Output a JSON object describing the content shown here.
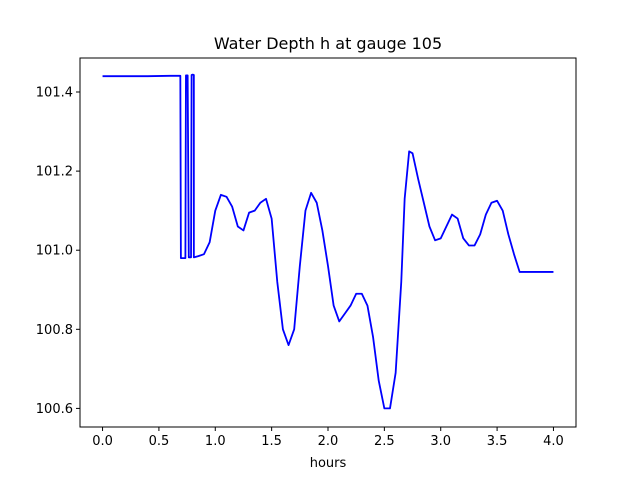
{
  "chart_data": {
    "type": "line",
    "title": "Water Depth h at gauge 105",
    "xlabel": "hours",
    "ylabel": "",
    "xlim": [
      -0.2,
      4.2
    ],
    "ylim": [
      100.553,
      101.486
    ],
    "grid": false,
    "xticks": [
      0.0,
      0.5,
      1.0,
      1.5,
      2.0,
      2.5,
      3.0,
      3.5,
      4.0
    ],
    "xtick_labels": [
      "0.0",
      "0.5",
      "1.0",
      "1.5",
      "2.0",
      "2.5",
      "3.0",
      "3.5",
      "4.0"
    ],
    "yticks": [
      100.6,
      100.8,
      101.0,
      101.2,
      101.4
    ],
    "ytick_labels": [
      "100.6",
      "100.8",
      "101.0",
      "101.2",
      "101.4"
    ],
    "series": [
      {
        "color": "#0000ff",
        "x": [
          0.0,
          0.2,
          0.4,
          0.6,
          0.69,
          0.695,
          0.72,
          0.735,
          0.74,
          0.755,
          0.765,
          0.77,
          0.785,
          0.79,
          0.8,
          0.81,
          0.81,
          0.85,
          0.9,
          0.95,
          1.0,
          1.05,
          1.1,
          1.15,
          1.2,
          1.25,
          1.3,
          1.35,
          1.4,
          1.45,
          1.5,
          1.55,
          1.6,
          1.65,
          1.7,
          1.75,
          1.8,
          1.85,
          1.9,
          1.95,
          2.0,
          2.05,
          2.1,
          2.15,
          2.2,
          2.25,
          2.3,
          2.35,
          2.4,
          2.45,
          2.5,
          2.55,
          2.6,
          2.65,
          2.68,
          2.72,
          2.75,
          2.8,
          2.85,
          2.9,
          2.95,
          3.0,
          3.05,
          3.1,
          3.15,
          3.2,
          3.25,
          3.3,
          3.35,
          3.4,
          3.45,
          3.5,
          3.55,
          3.6,
          3.65,
          3.7,
          3.75,
          3.8,
          3.85,
          3.9,
          3.95,
          4.0
        ],
        "y": [
          101.44,
          101.44,
          101.44,
          101.441,
          101.441,
          100.98,
          100.98,
          100.98,
          101.442,
          101.442,
          100.982,
          100.982,
          100.982,
          101.443,
          101.444,
          101.443,
          100.982,
          100.985,
          100.99,
          101.02,
          101.1,
          101.14,
          101.135,
          101.11,
          101.06,
          101.05,
          101.095,
          101.1,
          101.12,
          101.13,
          101.08,
          100.92,
          100.8,
          100.76,
          100.8,
          100.96,
          101.1,
          101.145,
          101.12,
          101.05,
          100.96,
          100.86,
          100.82,
          100.84,
          100.86,
          100.89,
          100.89,
          100.86,
          100.78,
          100.67,
          100.6,
          100.6,
          100.69,
          100.92,
          101.13,
          101.25,
          101.245,
          101.18,
          101.12,
          101.06,
          101.025,
          101.03,
          101.06,
          101.09,
          101.08,
          101.03,
          101.012,
          101.012,
          101.04,
          101.09,
          101.12,
          101.125,
          101.1,
          101.04,
          100.99,
          100.945,
          100.945,
          100.945,
          100.945,
          100.945,
          100.945,
          100.945
        ]
      }
    ]
  }
}
